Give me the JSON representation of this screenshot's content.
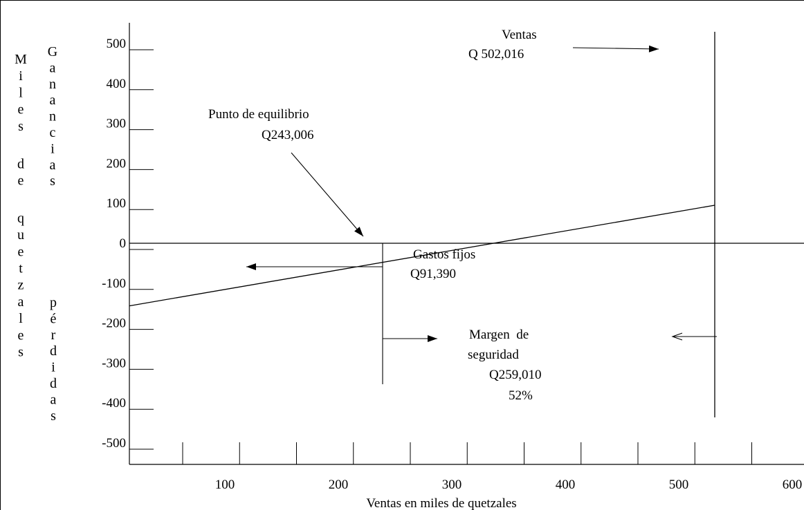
{
  "chart_data": {
    "type": "line",
    "title": "",
    "xlabel": "Ventas en miles de quetzales",
    "ylabel_outer": "Miles de quetzales",
    "ylabel_upper": "Ganancias",
    "ylabel_lower": "pérdidas",
    "xlim": [
      0,
      600
    ],
    "ylim": [
      -500,
      500
    ],
    "x_ticks": [
      100,
      200,
      300,
      400,
      500,
      600
    ],
    "x_tick_labels": [
      "100",
      "200",
      "300",
      "400",
      "500",
      "600"
    ],
    "y_ticks": [
      500,
      400,
      300,
      200,
      100,
      0,
      -100,
      -200,
      -300,
      -400,
      -500
    ],
    "y_tick_labels": [
      "500",
      "400",
      "300",
      "200",
      "100",
      "0",
      "-100",
      "-200",
      "-300",
      "-400",
      "-500"
    ],
    "grid": false,
    "series": [
      {
        "x": [
          0,
          502
        ],
        "y": [
          -91,
          96
        ]
      }
    ],
    "annotations": {
      "ventas_title": "Ventas",
      "ventas_value": "Q 502,016",
      "equilibrio_title": "Punto de equilibrio",
      "equilibrio_value": "Q243,006",
      "gastos_title": "Gastos fijos",
      "gastos_value": "Q91,390",
      "margen_title_1": "Margen  de",
      "margen_title_2": "seguridad",
      "margen_value": "Q259,010",
      "margen_pct": "52%"
    },
    "markers": {
      "ventas_x": 502,
      "equilibrio_x": 243
    }
  }
}
